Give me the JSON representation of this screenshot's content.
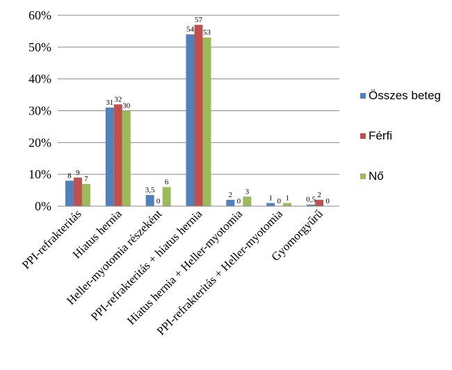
{
  "chart_data": {
    "type": "bar",
    "categories": [
      "PPI-refrakteritás",
      "Hiatus hernia",
      "Heller-myotomia részeként",
      "PPI-refrakteritás + hiatus hernia",
      "Hiatus hernia + Heller-myotomia",
      "PPI-refrakteritás + Heller-myotomia",
      "Gyomorgyűrű"
    ],
    "series": [
      {
        "name": "Összes beteg",
        "color": "#4f81bd",
        "values": [
          8,
          31,
          3.5,
          54,
          2,
          1,
          0.5
        ],
        "labels": [
          "8",
          "31",
          "3,5",
          "54",
          "2",
          "1",
          "0,5"
        ]
      },
      {
        "name": "Férfi",
        "color": "#c0504d",
        "values": [
          9,
          32,
          0,
          57,
          0,
          0,
          2
        ],
        "labels": [
          "9",
          "32",
          "0",
          "57",
          "0",
          "0",
          "2"
        ]
      },
      {
        "name": "Nő",
        "color": "#9bbb59",
        "values": [
          7,
          30,
          6,
          53,
          3,
          1,
          0
        ],
        "labels": [
          "7",
          "30",
          "6",
          "53",
          "3",
          "1",
          "0"
        ]
      }
    ],
    "ylim": [
      0,
      60
    ],
    "yticks": [
      "0%",
      "10%",
      "20%",
      "30%",
      "40%",
      "50%",
      "60%"
    ],
    "grid": true,
    "legend_position": "right",
    "xlabel": "",
    "ylabel": "",
    "title": ""
  }
}
